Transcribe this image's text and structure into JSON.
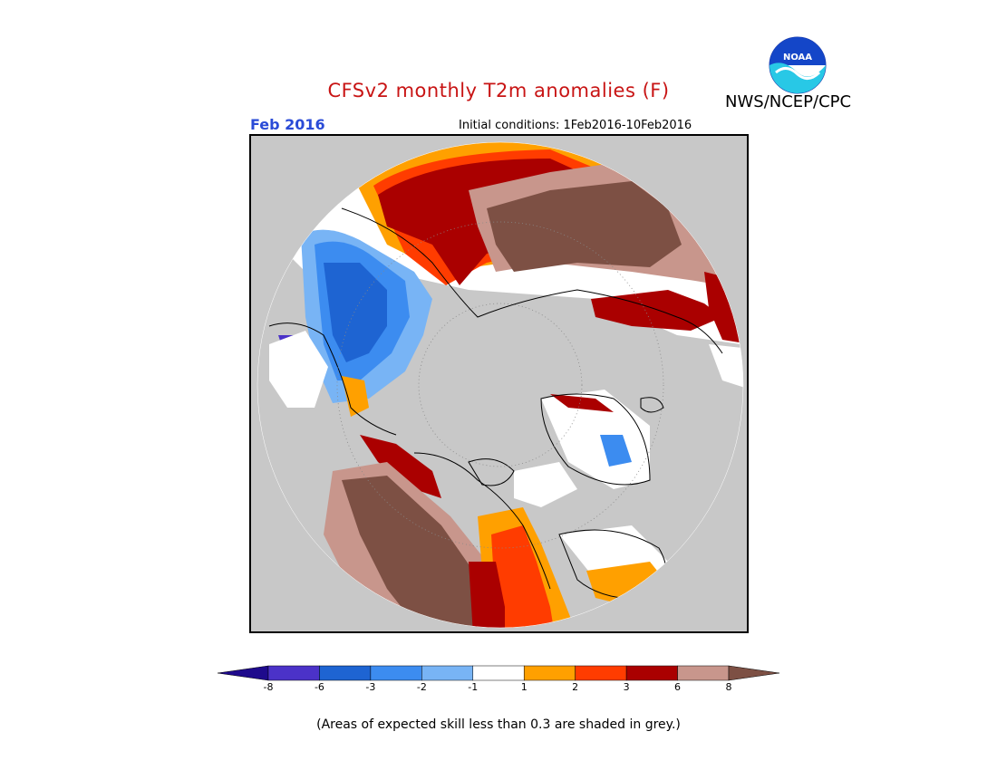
{
  "header": {
    "title": "CFSv2 monthly T2m anomalies (F)",
    "agency": "NWS/NCEP/CPC",
    "logo_text": "NOAA",
    "valid_month": "Feb 2016",
    "initial_conditions": "Initial conditions: 1Feb2016-10Feb2016"
  },
  "colors": {
    "grey_skill": "#c8c8c8",
    "title_red": "#c81414",
    "month_blue": "#2a4bd7"
  },
  "legend": {
    "bins": [
      {
        "color": "#1e0a8c"
      },
      {
        "color": "#4b32c8"
      },
      {
        "color": "#1e64d2"
      },
      {
        "color": "#3c8cf0"
      },
      {
        "color": "#78b4f5"
      },
      {
        "color": "#ffffff"
      },
      {
        "color": "#ffa000"
      },
      {
        "color": "#ff3c00"
      },
      {
        "color": "#aa0000"
      },
      {
        "color": "#c8968c"
      },
      {
        "color": "#7d5044"
      }
    ],
    "ticks": [
      "-8",
      "-6",
      "-3",
      "-2",
      "-1",
      "1",
      "2",
      "3",
      "6",
      "8"
    ]
  },
  "footnote": "(Areas of expected skill less than 0.3 are shaded in grey.)"
}
